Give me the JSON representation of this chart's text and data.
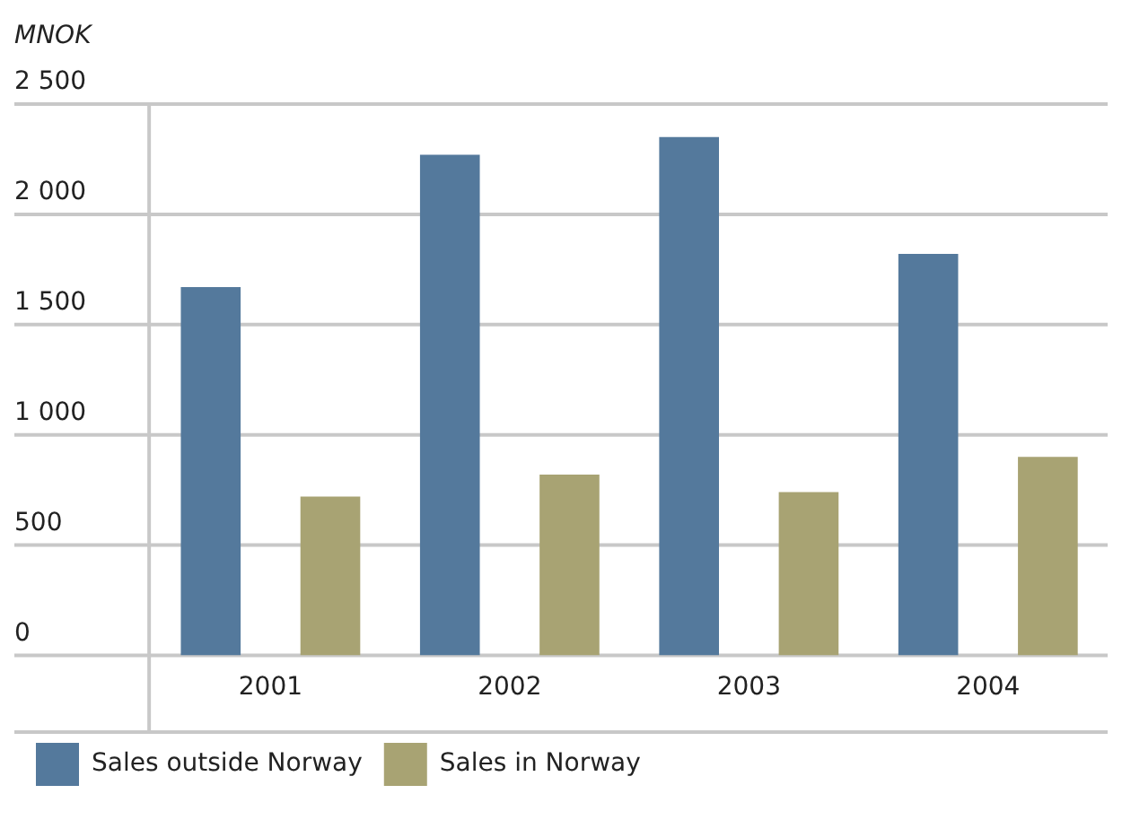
{
  "chart_data": {
    "type": "bar",
    "ylabel": "MNOK",
    "categories": [
      "2001",
      "2002",
      "2003",
      "2004"
    ],
    "series": [
      {
        "name": "Sales outside Norway",
        "color": "#54799c",
        "values": [
          1670,
          2270,
          2350,
          1820
        ]
      },
      {
        "name": "Sales in Norway",
        "color": "#a8a373",
        "values": [
          720,
          820,
          740,
          900
        ]
      }
    ],
    "ylim": [
      0,
      2500
    ],
    "yticks": [
      0,
      500,
      {
        "value": 1000,
        "label": "1 000"
      },
      {
        "value": 1500,
        "label": "1 500"
      },
      {
        "value": 2000,
        "label": "2 000"
      },
      {
        "value": 2500,
        "label": "2 500"
      }
    ],
    "grid": "y",
    "legend": "bottom left"
  }
}
